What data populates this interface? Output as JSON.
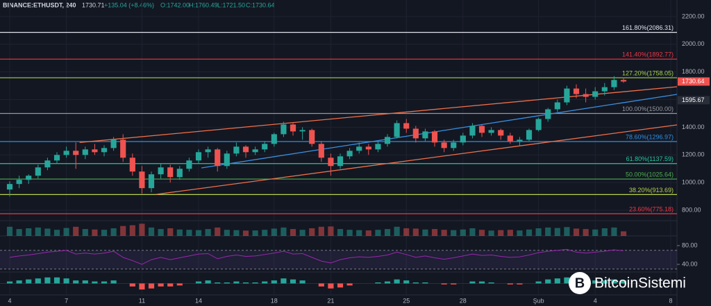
{
  "chart_data": {
    "type": "candlestick",
    "header": {
      "symbol": "BINANCE:ETHUSDT, 240",
      "last": "1730.71",
      "change": "+135.04 (+8.46%)",
      "open": "O:1742.00",
      "high": "H:1760.49",
      "low": "L:1721.50",
      "close": "C:1730.64"
    },
    "xticks": [
      {
        "value": 0,
        "label": "4"
      },
      {
        "value": 6,
        "label": "7"
      },
      {
        "value": 14,
        "label": "11"
      },
      {
        "value": 20,
        "label": "14"
      },
      {
        "value": 28,
        "label": "18"
      },
      {
        "value": 34,
        "label": "21"
      },
      {
        "value": 42,
        "label": "25"
      },
      {
        "value": 48,
        "label": "28"
      },
      {
        "value": 56,
        "label": "Şub"
      },
      {
        "value": 62,
        "label": "4"
      },
      {
        "value": 70,
        "label": "8"
      }
    ],
    "xlim": [
      -1.03,
      70.66
    ],
    "ylim": [
      725,
      2320
    ],
    "yticks": [
      {
        "value": 2200,
        "label": "2200.00"
      },
      {
        "value": 2000,
        "label": "2000.00"
      },
      {
        "value": 1800,
        "label": "1800.00"
      },
      {
        "value": 1600,
        "label": "1600.00"
      },
      {
        "value": 1400,
        "label": "1400.00"
      },
      {
        "value": 1200,
        "label": "1200.00"
      },
      {
        "value": 1000,
        "label": "1000.00"
      },
      {
        "value": 800,
        "label": "800.00"
      }
    ],
    "fib_levels": [
      {
        "label": "161.80%(2086.31)",
        "value": 2086.31,
        "color": "#e0e3eb"
      },
      {
        "label": "141.40%(1892.77)",
        "value": 1892.77,
        "color": "#f23645"
      },
      {
        "label": "127.20%(1758.05)",
        "value": 1758.05,
        "color": "#a5d24c"
      },
      {
        "label": "100.00%(1500.00)",
        "value": 1500,
        "color": "#9598a1"
      },
      {
        "label": "78.60%(1296.97)",
        "value": 1296.97,
        "color": "#2f8fe6"
      },
      {
        "label": "61.80%(1137.59)",
        "value": 1137.59,
        "color": "#26c6a0"
      },
      {
        "label": "50.00%(1025.64)",
        "value": 1025.64,
        "color": "#4caf50"
      },
      {
        "label": "38.20%(913.69)",
        "value": 913.69,
        "color": "#b8d44c"
      },
      {
        "label": "23.60%(775.18)",
        "value": 775.18,
        "color": "#f23645"
      }
    ],
    "trendlines": [
      {
        "x": [
          7.4,
          70.66
        ],
        "y": [
          1290,
          1693
        ],
        "color": "#f0704a"
      },
      {
        "x": [
          15.5,
          70.66
        ],
        "y": [
          915,
          1417
        ],
        "color": "#f0704a"
      },
      {
        "x": [
          20.3,
          70.66
        ],
        "y": [
          1106,
          1638
        ],
        "color": "#3a8fe0"
      }
    ],
    "price_badges": [
      {
        "value": 1730.64,
        "label": "1730.64",
        "color": "#ef5350"
      },
      {
        "value": 1595.67,
        "label": "1595.67",
        "color": "#2a2e39"
      }
    ],
    "up_color": "#26a69a",
    "down_color": "#ef5350",
    "open": [
      950,
      990,
      1020,
      1050,
      1110,
      1160,
      1200,
      1230,
      1200,
      1240,
      1220,
      1250,
      1310,
      1180,
      1080,
      960,
      1060,
      1110,
      1040,
      1100,
      1160,
      1220,
      1240,
      1120,
      1210,
      1260,
      1220,
      1240,
      1280,
      1350,
      1420,
      1370,
      1380,
      1280,
      1180,
      1120,
      1190,
      1230,
      1260,
      1240,
      1280,
      1330,
      1430,
      1390,
      1320,
      1370,
      1290,
      1250,
      1290,
      1340,
      1410,
      1360,
      1380,
      1340,
      1300,
      1310,
      1380,
      1460,
      1530,
      1580,
      1680,
      1640,
      1620,
      1660,
      1690,
      1742
    ],
    "high": [
      1010,
      1050,
      1060,
      1130,
      1180,
      1220,
      1260,
      1290,
      1260,
      1280,
      1270,
      1330,
      1350,
      1210,
      1120,
      1080,
      1140,
      1130,
      1120,
      1180,
      1240,
      1260,
      1250,
      1230,
      1290,
      1270,
      1260,
      1300,
      1360,
      1440,
      1430,
      1400,
      1390,
      1300,
      1210,
      1210,
      1250,
      1290,
      1280,
      1300,
      1350,
      1450,
      1460,
      1410,
      1390,
      1380,
      1310,
      1310,
      1360,
      1430,
      1420,
      1400,
      1390,
      1360,
      1330,
      1390,
      1470,
      1540,
      1600,
      1700,
      1710,
      1680,
      1690,
      1720,
      1770,
      1760.49
    ],
    "low": [
      900,
      960,
      990,
      1030,
      1090,
      1140,
      1180,
      1100,
      1170,
      1200,
      1190,
      1230,
      1150,
      1050,
      920,
      930,
      1030,
      1000,
      1020,
      1080,
      1140,
      1180,
      1080,
      1100,
      1190,
      1180,
      1200,
      1220,
      1260,
      1330,
      1340,
      1310,
      1260,
      1150,
      1050,
      1100,
      1170,
      1210,
      1200,
      1220,
      1260,
      1320,
      1360,
      1290,
      1300,
      1260,
      1220,
      1230,
      1270,
      1320,
      1330,
      1340,
      1310,
      1280,
      1270,
      1300,
      1370,
      1440,
      1510,
      1560,
      1610,
      1580,
      1600,
      1630,
      1670,
      1721.5
    ],
    "close": [
      990,
      1020,
      1050,
      1110,
      1160,
      1200,
      1230,
      1200,
      1240,
      1220,
      1250,
      1310,
      1180,
      1080,
      960,
      1060,
      1110,
      1040,
      1100,
      1160,
      1220,
      1240,
      1120,
      1210,
      1260,
      1220,
      1240,
      1280,
      1350,
      1420,
      1370,
      1380,
      1280,
      1180,
      1120,
      1190,
      1230,
      1260,
      1240,
      1280,
      1330,
      1430,
      1390,
      1320,
      1370,
      1290,
      1250,
      1290,
      1340,
      1410,
      1360,
      1380,
      1340,
      1300,
      1310,
      1380,
      1460,
      1530,
      1580,
      1680,
      1640,
      1620,
      1660,
      1690,
      1742,
      1730.64
    ],
    "volume": [
      60,
      45,
      50,
      55,
      48,
      40,
      52,
      60,
      45,
      42,
      40,
      50,
      65,
      70,
      80,
      55,
      45,
      50,
      42,
      40,
      38,
      45,
      55,
      40,
      38,
      35,
      36,
      40,
      48,
      55,
      45,
      40,
      50,
      60,
      62,
      45,
      40,
      38,
      36,
      40,
      45,
      60,
      50,
      48,
      42,
      45,
      40,
      38,
      42,
      50,
      40,
      35,
      38,
      40,
      36,
      42,
      50,
      55,
      52,
      58,
      48,
      45,
      42,
      50,
      55,
      30
    ],
    "volume_ylim": [
      0,
      100
    ],
    "rsi": [
      55,
      58,
      60,
      63,
      66,
      68,
      70,
      62,
      64,
      62,
      64,
      68,
      55,
      48,
      40,
      50,
      55,
      50,
      54,
      58,
      62,
      63,
      52,
      57,
      60,
      57,
      58,
      61,
      64,
      68,
      62,
      63,
      55,
      47,
      43,
      50,
      54,
      56,
      55,
      57,
      60,
      66,
      61,
      55,
      58,
      54,
      51,
      54,
      58,
      62,
      59,
      60,
      57,
      55,
      56,
      60,
      65,
      68,
      70,
      72,
      66,
      64,
      66,
      68,
      71,
      69
    ],
    "rsi_ylim": [
      23.7,
      100.7
    ],
    "rsi_yticks": [
      {
        "value": 80,
        "label": "80.00"
      },
      {
        "value": 40,
        "label": "40.00"
      }
    ],
    "rsi_bands": [
      30,
      70
    ],
    "rsi_color": "#9c27b0",
    "macd_hist": [
      0.2,
      0.3,
      0.4,
      0.5,
      0.6,
      0.6,
      0.5,
      0.3,
      0.3,
      0.2,
      0.2,
      0.3,
      0,
      -0.3,
      -0.6,
      -0.5,
      -0.3,
      -0.3,
      -0.2,
      0,
      0.2,
      0.3,
      0.1,
      0.1,
      0.2,
      0.1,
      0.1,
      0.2,
      0.3,
      0.5,
      0.4,
      0.3,
      0,
      -0.3,
      -0.5,
      -0.4,
      -0.2,
      0,
      0,
      0.1,
      0.2,
      0.4,
      0.3,
      0.1,
      0.1,
      0,
      -0.1,
      -0.1,
      0,
      0.2,
      0.2,
      0.1,
      0,
      -0.1,
      -0.1,
      0,
      0.2,
      0.4,
      0.5,
      0.6,
      0.4,
      0.3,
      0.3,
      0.3,
      0.4,
      0.3
    ],
    "macd_ylim": [
      -1,
      1
    ],
    "watermark": "BitcoinSistemi"
  }
}
